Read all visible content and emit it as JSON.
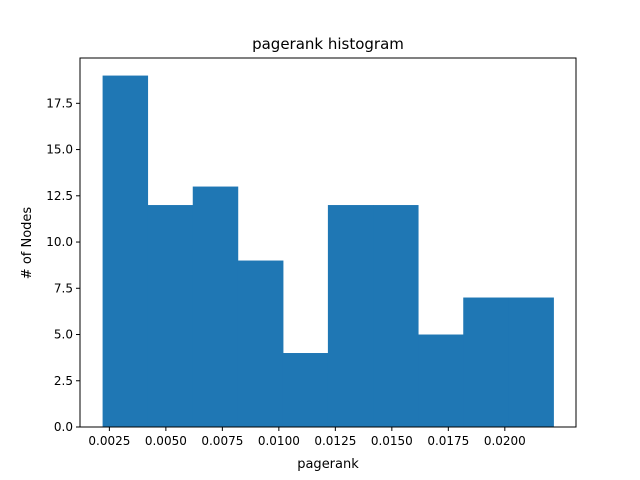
{
  "chart_data": {
    "type": "bar",
    "title": "pagerank histogram",
    "xlabel": "pagerank",
    "ylabel": "# of Nodes",
    "bins": [
      {
        "x0": 0.0022,
        "x1": 0.00419,
        "count": 19
      },
      {
        "x0": 0.00419,
        "x1": 0.00619,
        "count": 12
      },
      {
        "x0": 0.00619,
        "x1": 0.00818,
        "count": 13
      },
      {
        "x0": 0.00818,
        "x1": 0.01018,
        "count": 9
      },
      {
        "x0": 0.01018,
        "x1": 0.01217,
        "count": 4
      },
      {
        "x0": 0.01217,
        "x1": 0.01417,
        "count": 12
      },
      {
        "x0": 0.01417,
        "x1": 0.01616,
        "count": 12
      },
      {
        "x0": 0.01616,
        "x1": 0.01816,
        "count": 5
      },
      {
        "x0": 0.01816,
        "x1": 0.02015,
        "count": 7
      },
      {
        "x0": 0.02015,
        "x1": 0.02215,
        "count": 7
      }
    ],
    "xlim": [
      0.0012,
      0.02315
    ],
    "ylim": [
      0,
      19.95
    ],
    "xticks": [
      0.0025,
      0.005,
      0.0075,
      0.01,
      0.0125,
      0.015,
      0.0175,
      0.02
    ],
    "xtick_labels": [
      "0.0025",
      "0.0050",
      "0.0075",
      "0.0100",
      "0.0125",
      "0.0150",
      "0.0175",
      "0.0200"
    ],
    "yticks": [
      0,
      2.5,
      5,
      7.5,
      10,
      12.5,
      15,
      17.5
    ],
    "ytick_labels": [
      "0.0",
      "2.5",
      "5.0",
      "7.5",
      "10.0",
      "12.5",
      "15.0",
      "17.5"
    ],
    "grid": false,
    "bar_color": "#1f77b4"
  }
}
